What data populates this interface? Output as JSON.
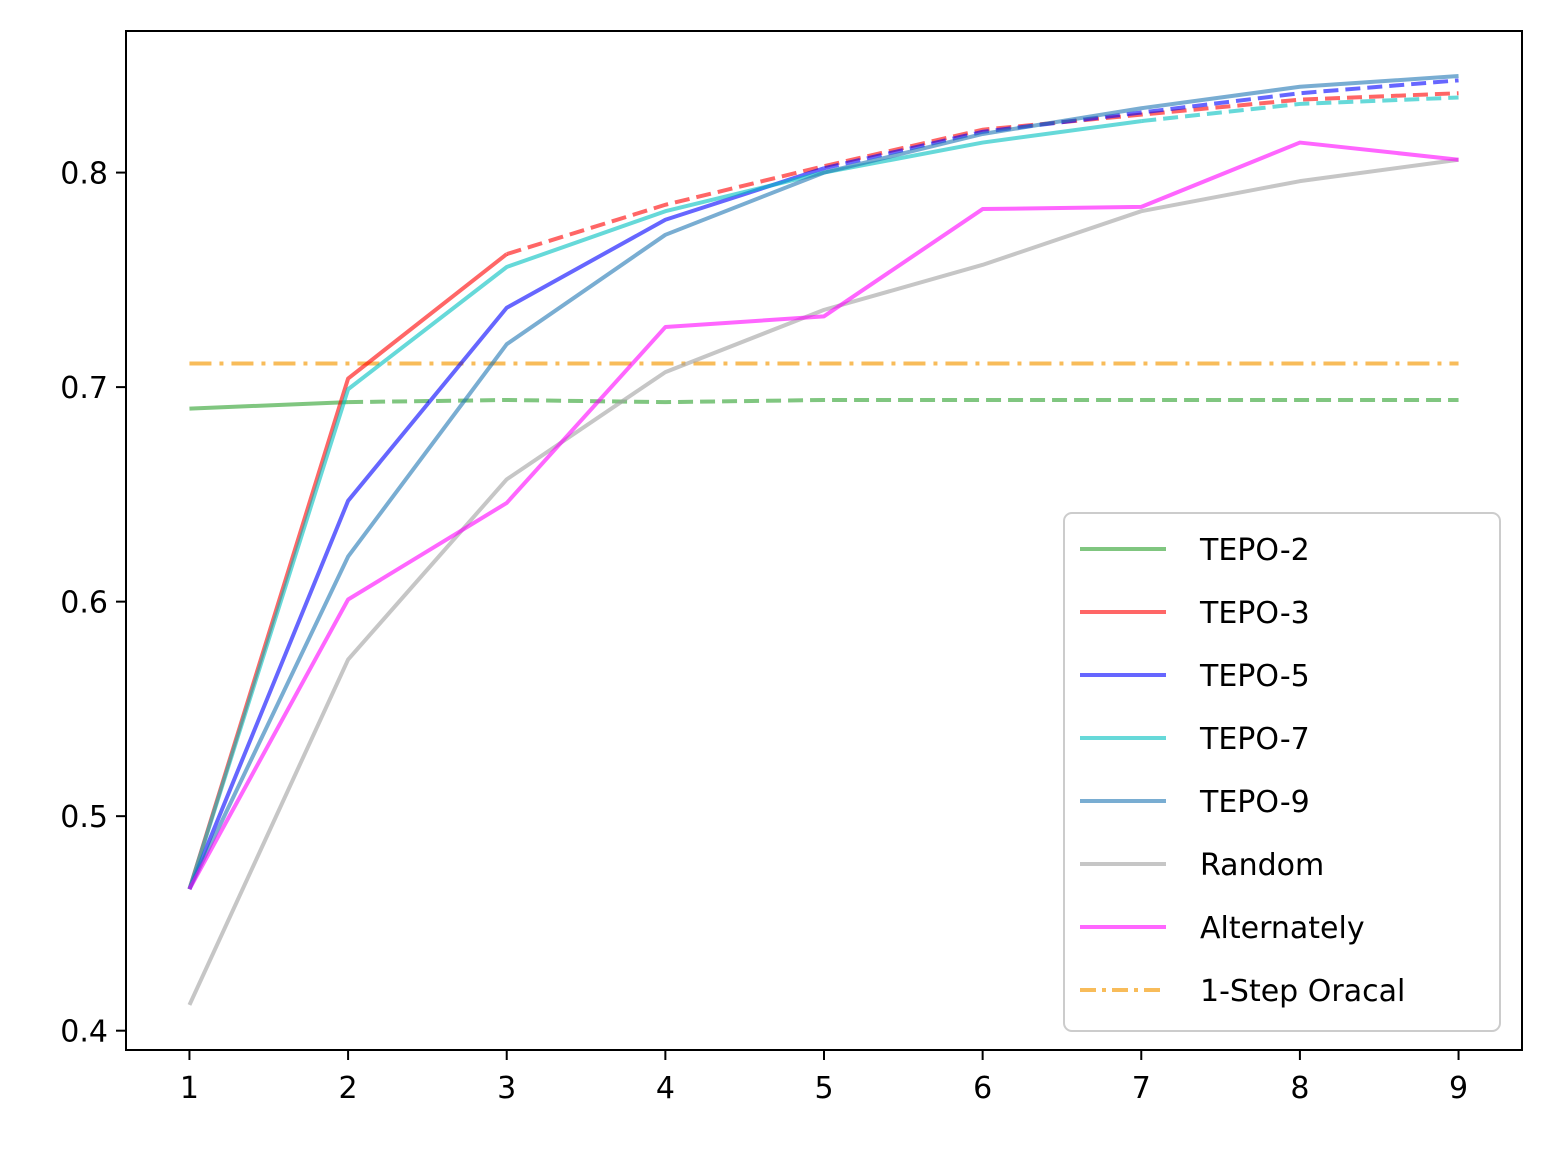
{
  "chart_data": {
    "type": "line",
    "title": "",
    "xlabel": "",
    "ylabel": "",
    "x": [
      1,
      2,
      3,
      4,
      5,
      6,
      7,
      8,
      9
    ],
    "xlim": [
      0.6,
      9.4
    ],
    "ylim": [
      0.391,
      0.866
    ],
    "xticks": [
      "1",
      "2",
      "3",
      "4",
      "5",
      "6",
      "7",
      "8",
      "9"
    ],
    "yticks": [
      "0.4",
      "0.5",
      "0.6",
      "0.7",
      "0.8"
    ],
    "grid": false,
    "legend_position": "lower-right",
    "series": [
      {
        "name": "TEPO-2",
        "color": "#2ca02c",
        "solid_until_index": 1,
        "values": [
          0.69,
          0.693,
          0.694,
          0.693,
          0.694,
          0.694,
          0.694,
          0.694,
          0.694
        ]
      },
      {
        "name": "TEPO-3",
        "color": "#ff0000",
        "solid_until_index": 2,
        "values": [
          0.466,
          0.704,
          0.762,
          0.785,
          0.803,
          0.82,
          0.827,
          0.834,
          0.837
        ]
      },
      {
        "name": "TEPO-5",
        "color": "#0000ff",
        "solid_until_index": 4,
        "values": [
          0.466,
          0.647,
          0.737,
          0.778,
          0.802,
          0.819,
          0.828,
          0.837,
          0.843
        ]
      },
      {
        "name": "TEPO-7",
        "color": "#00c0c0",
        "solid_until_index": 6,
        "values": [
          0.466,
          0.699,
          0.756,
          0.782,
          0.8,
          0.814,
          0.824,
          0.832,
          0.835
        ]
      },
      {
        "name": "TEPO-9",
        "color": "#1f77b4",
        "solid_until_index": 8,
        "values": [
          0.466,
          0.621,
          0.72,
          0.771,
          0.8,
          0.818,
          0.83,
          0.84,
          0.845
        ]
      },
      {
        "name": "Random",
        "color": "#a0a0a0",
        "solid_until_index": 8,
        "values": [
          0.412,
          0.573,
          0.657,
          0.707,
          0.736,
          0.757,
          0.782,
          0.796,
          0.806
        ]
      },
      {
        "name": "Alternately",
        "color": "#ff00ff",
        "solid_until_index": 8,
        "values": [
          0.466,
          0.601,
          0.646,
          0.728,
          0.733,
          0.783,
          0.784,
          0.814,
          0.806
        ]
      }
    ],
    "reference_line": {
      "name": "1-Step Oracal",
      "color": "#f5a623",
      "value": 0.711,
      "style": "dash-dot"
    }
  }
}
